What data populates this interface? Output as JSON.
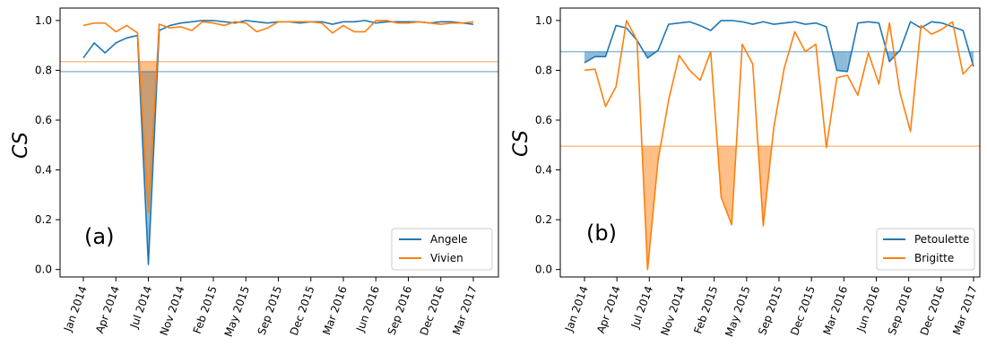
{
  "chart_data": [
    {
      "type": "line",
      "panel_label": "(a)",
      "ylabel": "CS",
      "ylim": [
        -0.03,
        1.05
      ],
      "yticks": [
        "0.0",
        "0.2",
        "0.4",
        "0.6",
        "0.8",
        "1.0"
      ],
      "xticks": [
        "Jan 2014",
        "Apr 2014",
        "Jul 2014",
        "Nov 2014",
        "Feb 2015",
        "May 2015",
        "Sep 2015",
        "Dec 2015",
        "Mar 2016",
        "Jun 2016",
        "Sep 2016",
        "Dec 2016",
        "Mar 2017"
      ],
      "legend_position": "lower-right",
      "series": [
        {
          "name": "Angele",
          "color": "#1f77b4",
          "threshold": 0.795,
          "values": [
            0.85,
            0.91,
            0.87,
            0.91,
            0.93,
            0.94,
            0.02,
            0.96,
            0.98,
            0.99,
            0.995,
            1.0,
            1.0,
            0.995,
            0.99,
            1.0,
            0.995,
            0.99,
            0.995,
            0.995,
            0.99,
            0.995,
            0.995,
            0.985,
            0.995,
            0.995,
            1.0,
            0.99,
            0.995,
            0.995,
            0.995,
            0.995,
            0.99,
            0.995,
            0.995,
            0.99,
            0.985
          ]
        },
        {
          "name": "Vivien",
          "color": "#ff7f0e",
          "threshold": 0.835,
          "values": [
            0.98,
            0.99,
            0.99,
            0.955,
            0.98,
            0.95,
            0.23,
            0.985,
            0.97,
            0.975,
            0.96,
            0.995,
            0.99,
            0.98,
            0.995,
            0.99,
            0.955,
            0.97,
            0.995,
            0.995,
            0.995,
            0.995,
            0.99,
            0.95,
            0.98,
            0.955,
            0.955,
            1.0,
            1.0,
            0.99,
            0.99,
            0.995,
            0.99,
            0.985,
            0.99,
            0.99,
            0.995
          ]
        }
      ]
    },
    {
      "type": "line",
      "panel_label": "(b)",
      "ylabel": "CS",
      "ylim": [
        -0.03,
        1.05
      ],
      "yticks": [
        "0.0",
        "0.2",
        "0.4",
        "0.6",
        "0.8",
        "1.0"
      ],
      "xticks": [
        "Jan 2014",
        "Apr 2014",
        "Jul 2014",
        "Nov 2014",
        "Feb 2015",
        "May 2015",
        "Sep 2015",
        "Dec 2015",
        "Mar 2016",
        "Jun 2016",
        "Sep 2016",
        "Dec 2016",
        "Mar 2017"
      ],
      "legend_position": "lower-right",
      "series": [
        {
          "name": "Petoulette",
          "color": "#1f77b4",
          "threshold": 0.875,
          "values": [
            0.83,
            0.855,
            0.855,
            0.98,
            0.97,
            0.92,
            0.85,
            0.88,
            0.985,
            0.99,
            0.995,
            0.98,
            0.96,
            1.0,
            1.0,
            0.995,
            0.985,
            0.995,
            0.985,
            0.99,
            0.995,
            0.985,
            0.99,
            0.975,
            0.8,
            0.795,
            0.99,
            0.995,
            0.99,
            0.835,
            0.88,
            0.995,
            0.97,
            0.995,
            0.99,
            0.975,
            0.96,
            0.815
          ]
        },
        {
          "name": "Brigitte",
          "color": "#ff7f0e",
          "threshold": 0.495,
          "values": [
            0.8,
            0.805,
            0.655,
            0.735,
            1.0,
            0.92,
            0.0,
            0.44,
            0.68,
            0.86,
            0.8,
            0.76,
            0.875,
            0.29,
            0.18,
            0.905,
            0.825,
            0.175,
            0.57,
            0.81,
            0.955,
            0.875,
            0.905,
            0.49,
            0.77,
            0.78,
            0.7,
            0.87,
            0.745,
            0.99,
            0.71,
            0.555,
            0.98,
            0.945,
            0.965,
            0.995,
            0.785,
            0.83
          ]
        }
      ]
    }
  ]
}
